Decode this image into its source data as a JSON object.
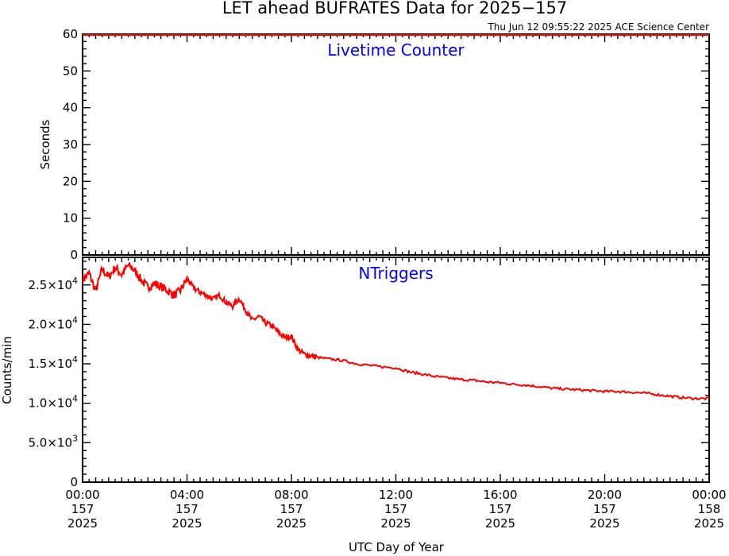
{
  "header": {
    "title": "LET ahead BUFRATES Data for 2025−157",
    "timestamp": "Thu Jun 12 09:55:22 2025 ACE Science Center"
  },
  "x_axis": {
    "title": "UTC Day of Year",
    "ticks": [
      {
        "value": 0,
        "lines": [
          "00:00",
          "157",
          "2025"
        ]
      },
      {
        "value": 4,
        "lines": [
          "04:00",
          "157",
          "2025"
        ]
      },
      {
        "value": 8,
        "lines": [
          "08:00",
          "157",
          "2025"
        ]
      },
      {
        "value": 12,
        "lines": [
          "12:00",
          "157",
          "2025"
        ]
      },
      {
        "value": 16,
        "lines": [
          "16:00",
          "157",
          "2025"
        ]
      },
      {
        "value": 20,
        "lines": [
          "20:00",
          "157",
          "2025"
        ]
      },
      {
        "value": 24,
        "lines": [
          "00:00",
          "158",
          "2025"
        ]
      }
    ]
  },
  "colors": {
    "data_line": "#ff0000",
    "panel_label": "#0000ff",
    "axes": "#000000"
  },
  "chart_data": [
    {
      "type": "line",
      "panel_label": "Livetime Counter",
      "xlabel": "UTC Day of Year",
      "ylabel": "Seconds",
      "xlim": [
        0,
        24
      ],
      "ylim": [
        0,
        60
      ],
      "y_ticks": [
        {
          "value": 0,
          "text": "0"
        },
        {
          "value": 10,
          "text": "10"
        },
        {
          "value": 20,
          "text": "20"
        },
        {
          "value": 30,
          "text": "30"
        },
        {
          "value": 40,
          "text": "40"
        },
        {
          "value": 50,
          "text": "50"
        },
        {
          "value": 60,
          "text": "60"
        }
      ],
      "series": [
        {
          "x": [
            0,
            1,
            2,
            3,
            4,
            5,
            6,
            7,
            8,
            9,
            10,
            11,
            12,
            13,
            14,
            15,
            16,
            17,
            18,
            19,
            20,
            21,
            22,
            23,
            24
          ],
          "y": [
            59.8,
            59.8,
            59.8,
            59.8,
            59.8,
            59.8,
            59.8,
            59.8,
            59.8,
            59.8,
            59.8,
            59.8,
            59.8,
            59.8,
            59.8,
            59.8,
            59.8,
            59.8,
            59.8,
            59.8,
            59.8,
            59.8,
            59.8,
            59.8,
            59.8
          ]
        }
      ]
    },
    {
      "type": "line",
      "panel_label": "NTriggers",
      "xlabel": "UTC Day of Year",
      "ylabel": "Counts/min",
      "xlim": [
        0,
        24
      ],
      "ylim": [
        0,
        28500
      ],
      "y_ticks": [
        {
          "value": 0,
          "text": "0",
          "mantissa": "",
          "exponent": ""
        },
        {
          "value": 5000,
          "text": "",
          "mantissa": "5.0×10",
          "exponent": "3"
        },
        {
          "value": 10000,
          "text": "",
          "mantissa": "1.0×10",
          "exponent": "4"
        },
        {
          "value": 15000,
          "text": "",
          "mantissa": "1.5×10",
          "exponent": "4"
        },
        {
          "value": 20000,
          "text": "",
          "mantissa": "2.0×10",
          "exponent": "4"
        },
        {
          "value": 25000,
          "text": "",
          "mantissa": "2.5×10",
          "exponent": "4"
        }
      ],
      "series": [
        {
          "x": [
            0,
            0.25,
            0.5,
            0.75,
            1,
            1.25,
            1.5,
            1.75,
            2,
            2.25,
            2.5,
            2.75,
            3,
            3.25,
            3.5,
            3.75,
            4,
            4.25,
            4.5,
            4.75,
            5,
            5.25,
            5.5,
            5.75,
            6,
            6.25,
            6.5,
            6.75,
            7,
            7.25,
            7.5,
            7.75,
            8,
            8.25,
            8.5,
            8.75,
            9,
            9.5,
            10,
            10.5,
            11,
            11.5,
            12,
            12.5,
            13,
            13.5,
            14,
            14.5,
            15,
            15.5,
            16,
            16.5,
            17,
            17.5,
            18,
            18.5,
            19,
            19.5,
            20,
            20.5,
            21,
            21.5,
            22,
            22.5,
            23,
            23.5,
            24
          ],
          "y": [
            25600,
            26500,
            24200,
            27000,
            26000,
            27200,
            26300,
            27500,
            26800,
            25600,
            24700,
            25200,
            24800,
            24300,
            23700,
            24300,
            25800,
            24600,
            24100,
            23700,
            23200,
            23700,
            22800,
            22300,
            23300,
            21800,
            20500,
            21000,
            20200,
            19800,
            19000,
            18300,
            18500,
            16800,
            16200,
            16000,
            15800,
            15600,
            15400,
            15000,
            14800,
            14600,
            14500,
            14000,
            13700,
            13400,
            13200,
            13000,
            12900,
            12700,
            12600,
            12400,
            12300,
            12100,
            11900,
            11800,
            11700,
            11600,
            11500,
            11500,
            11400,
            11300,
            11100,
            10900,
            10700,
            10600,
            10600
          ]
        }
      ]
    }
  ]
}
